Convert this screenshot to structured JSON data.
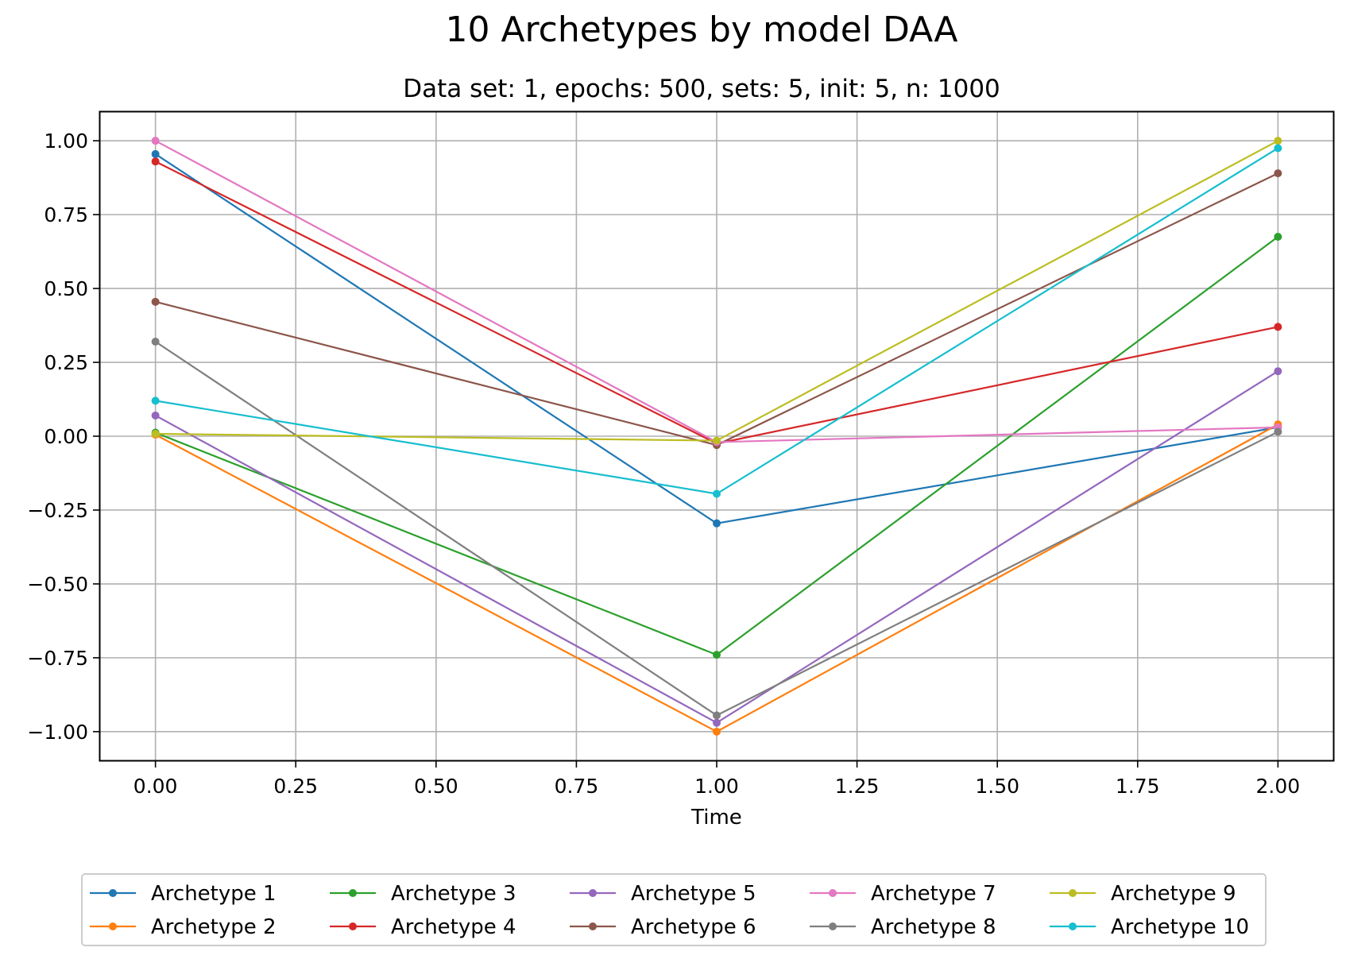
{
  "chart_data": {
    "type": "line",
    "title": "10 Archetypes by model DAA",
    "subtitle": "Data set: 1, epochs: 500, sets: 5, init: 5, n: 1000",
    "xlabel": "Time",
    "ylabel": "",
    "x": [
      0,
      1,
      2
    ],
    "xlim": [
      -0.1,
      2.1
    ],
    "ylim": [
      -1.1,
      1.1
    ],
    "xticks": [
      0,
      0.25,
      0.5,
      0.75,
      1.0,
      1.25,
      1.5,
      1.75,
      2.0
    ],
    "xtick_labels": [
      "0.00",
      "0.25",
      "0.50",
      "0.75",
      "1.00",
      "1.25",
      "1.50",
      "1.75",
      "2.00"
    ],
    "yticks": [
      1.0,
      0.75,
      0.5,
      0.25,
      0.0,
      -0.25,
      -0.5,
      -0.75,
      -1.0
    ],
    "ytick_labels": [
      "1.00",
      "0.75",
      "0.50",
      "0.25",
      "0.00",
      "−0.25",
      "−0.50",
      "−0.75",
      "−1.00"
    ],
    "grid": true,
    "legend_position": "bottom-center",
    "legend_columns": 5,
    "series": [
      {
        "name": "Archetype 1",
        "color": "#1f77b4",
        "values": [
          0.955,
          -0.295,
          0.03
        ]
      },
      {
        "name": "Archetype 2",
        "color": "#ff7f0e",
        "values": [
          0.005,
          -1.0,
          0.04
        ]
      },
      {
        "name": "Archetype 3",
        "color": "#2ca02c",
        "values": [
          0.012,
          -0.74,
          0.675
        ]
      },
      {
        "name": "Archetype 4",
        "color": "#d62728",
        "values": [
          0.93,
          -0.025,
          0.37
        ]
      },
      {
        "name": "Archetype 5",
        "color": "#9467bd",
        "values": [
          0.07,
          -0.97,
          0.22
        ]
      },
      {
        "name": "Archetype 6",
        "color": "#8c564b",
        "values": [
          0.455,
          -0.03,
          0.89
        ]
      },
      {
        "name": "Archetype 7",
        "color": "#e377c2",
        "values": [
          1.0,
          -0.02,
          0.03
        ]
      },
      {
        "name": "Archetype 8",
        "color": "#7f7f7f",
        "values": [
          0.32,
          -0.945,
          0.015
        ]
      },
      {
        "name": "Archetype 9",
        "color": "#bcbd22",
        "values": [
          0.008,
          -0.015,
          1.0
        ]
      },
      {
        "name": "Archetype 10",
        "color": "#17becf",
        "values": [
          0.12,
          -0.195,
          0.975
        ]
      }
    ]
  }
}
